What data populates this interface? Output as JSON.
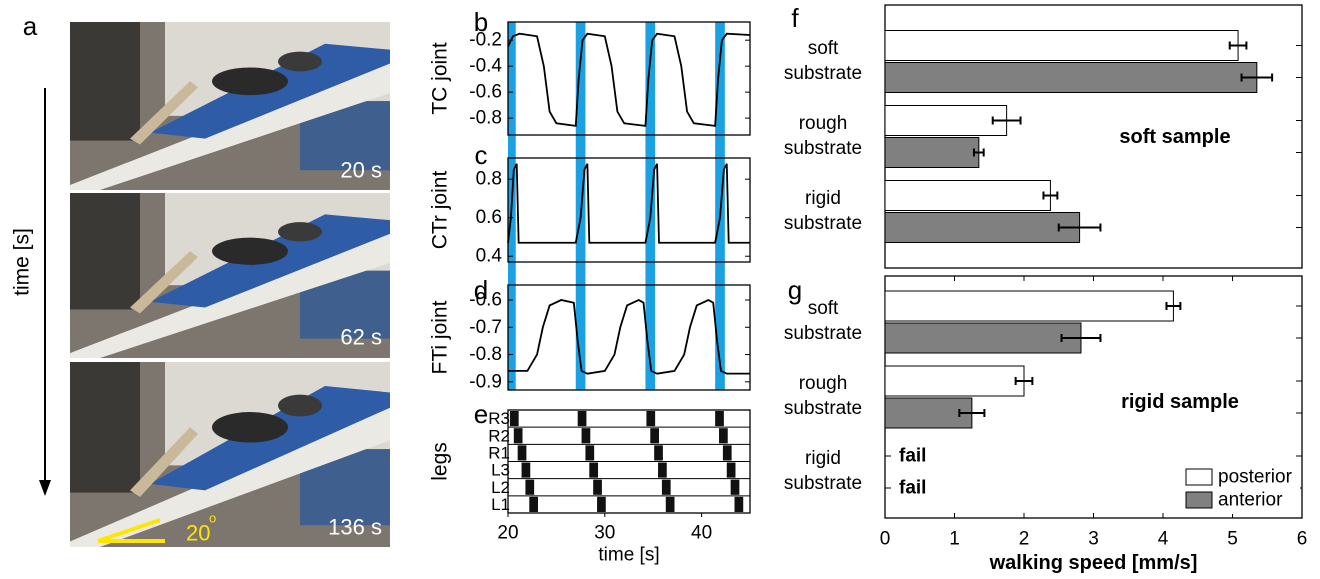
{
  "figure_a": {
    "panel": "a",
    "ylabel": "time [s]",
    "frames": [
      "20 s",
      "62 s",
      "136 s"
    ],
    "angle": "20",
    "angle_unit": "o"
  },
  "chart_data": [
    {
      "type": "line",
      "panel": "b",
      "ylabel": "TC joint",
      "xlim": [
        20,
        45
      ],
      "ylim": [
        -0.93,
        -0.06
      ],
      "yticks": [
        -0.2,
        -0.4,
        -0.6,
        -0.8
      ],
      "highlight_x": [
        [
          20,
          20.8
        ],
        [
          27,
          28
        ],
        [
          34.2,
          35.2
        ],
        [
          41.4,
          42.4
        ]
      ],
      "highlight_color": "#1ba1e2",
      "color": "#000000",
      "x": [
        20,
        20.5,
        21.2,
        23,
        23.7,
        24.3,
        25,
        27,
        27.3,
        27.7,
        28.2,
        30,
        30.7,
        31.3,
        32,
        34.2,
        34.5,
        34.9,
        35.4,
        37.2,
        37.9,
        38.5,
        39.2,
        41.4,
        41.7,
        42.1,
        42.6,
        45
      ],
      "values": [
        -0.25,
        -0.17,
        -0.15,
        -0.17,
        -0.4,
        -0.75,
        -0.84,
        -0.86,
        -0.5,
        -0.2,
        -0.15,
        -0.17,
        -0.4,
        -0.75,
        -0.84,
        -0.86,
        -0.5,
        -0.2,
        -0.15,
        -0.17,
        -0.4,
        -0.75,
        -0.84,
        -0.86,
        -0.5,
        -0.2,
        -0.15,
        -0.16
      ]
    },
    {
      "type": "line",
      "panel": "c",
      "ylabel": "CTr joint",
      "xlim": [
        20,
        45
      ],
      "ylim": [
        0.37,
        0.91
      ],
      "yticks": [
        0.4,
        0.6,
        0.8
      ],
      "color": "#000000",
      "x": [
        20,
        20.3,
        20.6,
        20.9,
        21.1,
        27,
        27.5,
        27.9,
        28.2,
        28.4,
        34.2,
        34.7,
        35.1,
        35.4,
        35.6,
        41.4,
        41.9,
        42.3,
        42.6,
        42.8,
        45
      ],
      "values": [
        0.47,
        0.6,
        0.85,
        0.88,
        0.47,
        0.47,
        0.6,
        0.85,
        0.88,
        0.47,
        0.47,
        0.6,
        0.85,
        0.88,
        0.47,
        0.47,
        0.6,
        0.85,
        0.88,
        0.47,
        0.47
      ]
    },
    {
      "type": "line",
      "panel": "d",
      "ylabel": "FTi joint",
      "xlim": [
        20,
        45
      ],
      "ylim": [
        -0.93,
        -0.545
      ],
      "yticks": [
        -0.6,
        -0.7,
        -0.8,
        -0.9
      ],
      "color": "#000000",
      "x": [
        20,
        22,
        23,
        23.6,
        24.3,
        25.5,
        26.8,
        27.2,
        27.6,
        28.2,
        30,
        31,
        31.6,
        32.3,
        33.5,
        34,
        34.4,
        34.8,
        35.4,
        37.2,
        38.2,
        38.8,
        39.5,
        40.7,
        41.2,
        41.6,
        42,
        42.6,
        45
      ],
      "values": [
        -0.86,
        -0.86,
        -0.8,
        -0.7,
        -0.62,
        -0.6,
        -0.61,
        -0.75,
        -0.86,
        -0.87,
        -0.86,
        -0.8,
        -0.7,
        -0.62,
        -0.6,
        -0.61,
        -0.75,
        -0.86,
        -0.87,
        -0.86,
        -0.8,
        -0.7,
        -0.62,
        -0.6,
        -0.61,
        -0.75,
        -0.86,
        -0.87,
        -0.87
      ]
    },
    {
      "type": "gait",
      "panel": "e",
      "ylabel": "legs",
      "xlabel": "time [s]",
      "xlim": [
        20,
        45
      ],
      "xticks": [
        20,
        30,
        40
      ],
      "series": [
        {
          "name": "R3",
          "color": "#111111",
          "values": [
            [
              20.2,
              21.1
            ],
            [
              27.2,
              28.1
            ],
            [
              34.3,
              35.2
            ],
            [
              41.4,
              42.3
            ]
          ]
        },
        {
          "name": "R2",
          "color": "#111111",
          "values": [
            [
              20.6,
              21.5
            ],
            [
              27.6,
              28.5
            ],
            [
              34.7,
              35.6
            ],
            [
              41.8,
              42.7
            ]
          ]
        },
        {
          "name": "R1",
          "color": "#111111",
          "values": [
            [
              21,
              21.9
            ],
            [
              28,
              28.9
            ],
            [
              35.1,
              36
            ],
            [
              42.2,
              43.1
            ]
          ]
        },
        {
          "name": "L3",
          "color": "#111111",
          "values": [
            [
              21.4,
              22.3
            ],
            [
              28.4,
              29.3
            ],
            [
              35.5,
              36.4
            ],
            [
              42.6,
              43.5
            ]
          ]
        },
        {
          "name": "L2",
          "color": "#111111",
          "values": [
            [
              21.8,
              22.7
            ],
            [
              28.8,
              29.7
            ],
            [
              35.9,
              36.8
            ],
            [
              43,
              43.9
            ]
          ]
        },
        {
          "name": "L1",
          "color": "#111111",
          "values": [
            [
              22.2,
              23.1
            ],
            [
              29.2,
              30.1
            ],
            [
              36.3,
              37.2
            ],
            [
              43.4,
              44.3
            ]
          ]
        }
      ]
    },
    {
      "type": "hbar",
      "panel": "f",
      "annotation": "soft sample",
      "xlim": [
        0,
        6
      ],
      "categories": [
        "soft\nsubstrate",
        "rough\nsubstrate",
        "rigid\nsubstrate"
      ],
      "series": [
        {
          "name": "posterior",
          "color": "#ffffff",
          "values": [
            5.08,
            1.75,
            2.38
          ],
          "errors": [
            0.12,
            0.2,
            0.1
          ]
        },
        {
          "name": "anterior",
          "color": "#808080",
          "values": [
            5.35,
            1.35,
            2.8
          ],
          "errors": [
            0.22,
            0.07,
            0.3
          ]
        }
      ]
    },
    {
      "type": "hbar",
      "panel": "g",
      "annotation": "rigid sample",
      "xlabel": "walking speed [mm/s]",
      "xlim": [
        0,
        6
      ],
      "xticks": [
        0,
        1,
        2,
        3,
        4,
        5,
        6
      ],
      "legend": "lower right",
      "categories": [
        "soft\nsubstrate",
        "rough\nsubstrate",
        "rigid\nsubstrate"
      ],
      "series": [
        {
          "name": "posterior",
          "color": "#ffffff",
          "values": [
            4.15,
            2.0,
            null
          ],
          "errors": [
            0.1,
            0.12,
            null
          ],
          "value_labels": [
            null,
            null,
            "fail"
          ]
        },
        {
          "name": "anterior",
          "color": "#808080",
          "values": [
            2.82,
            1.25,
            null
          ],
          "errors": [
            0.28,
            0.18,
            null
          ],
          "value_labels": [
            null,
            null,
            "fail"
          ]
        }
      ]
    }
  ]
}
